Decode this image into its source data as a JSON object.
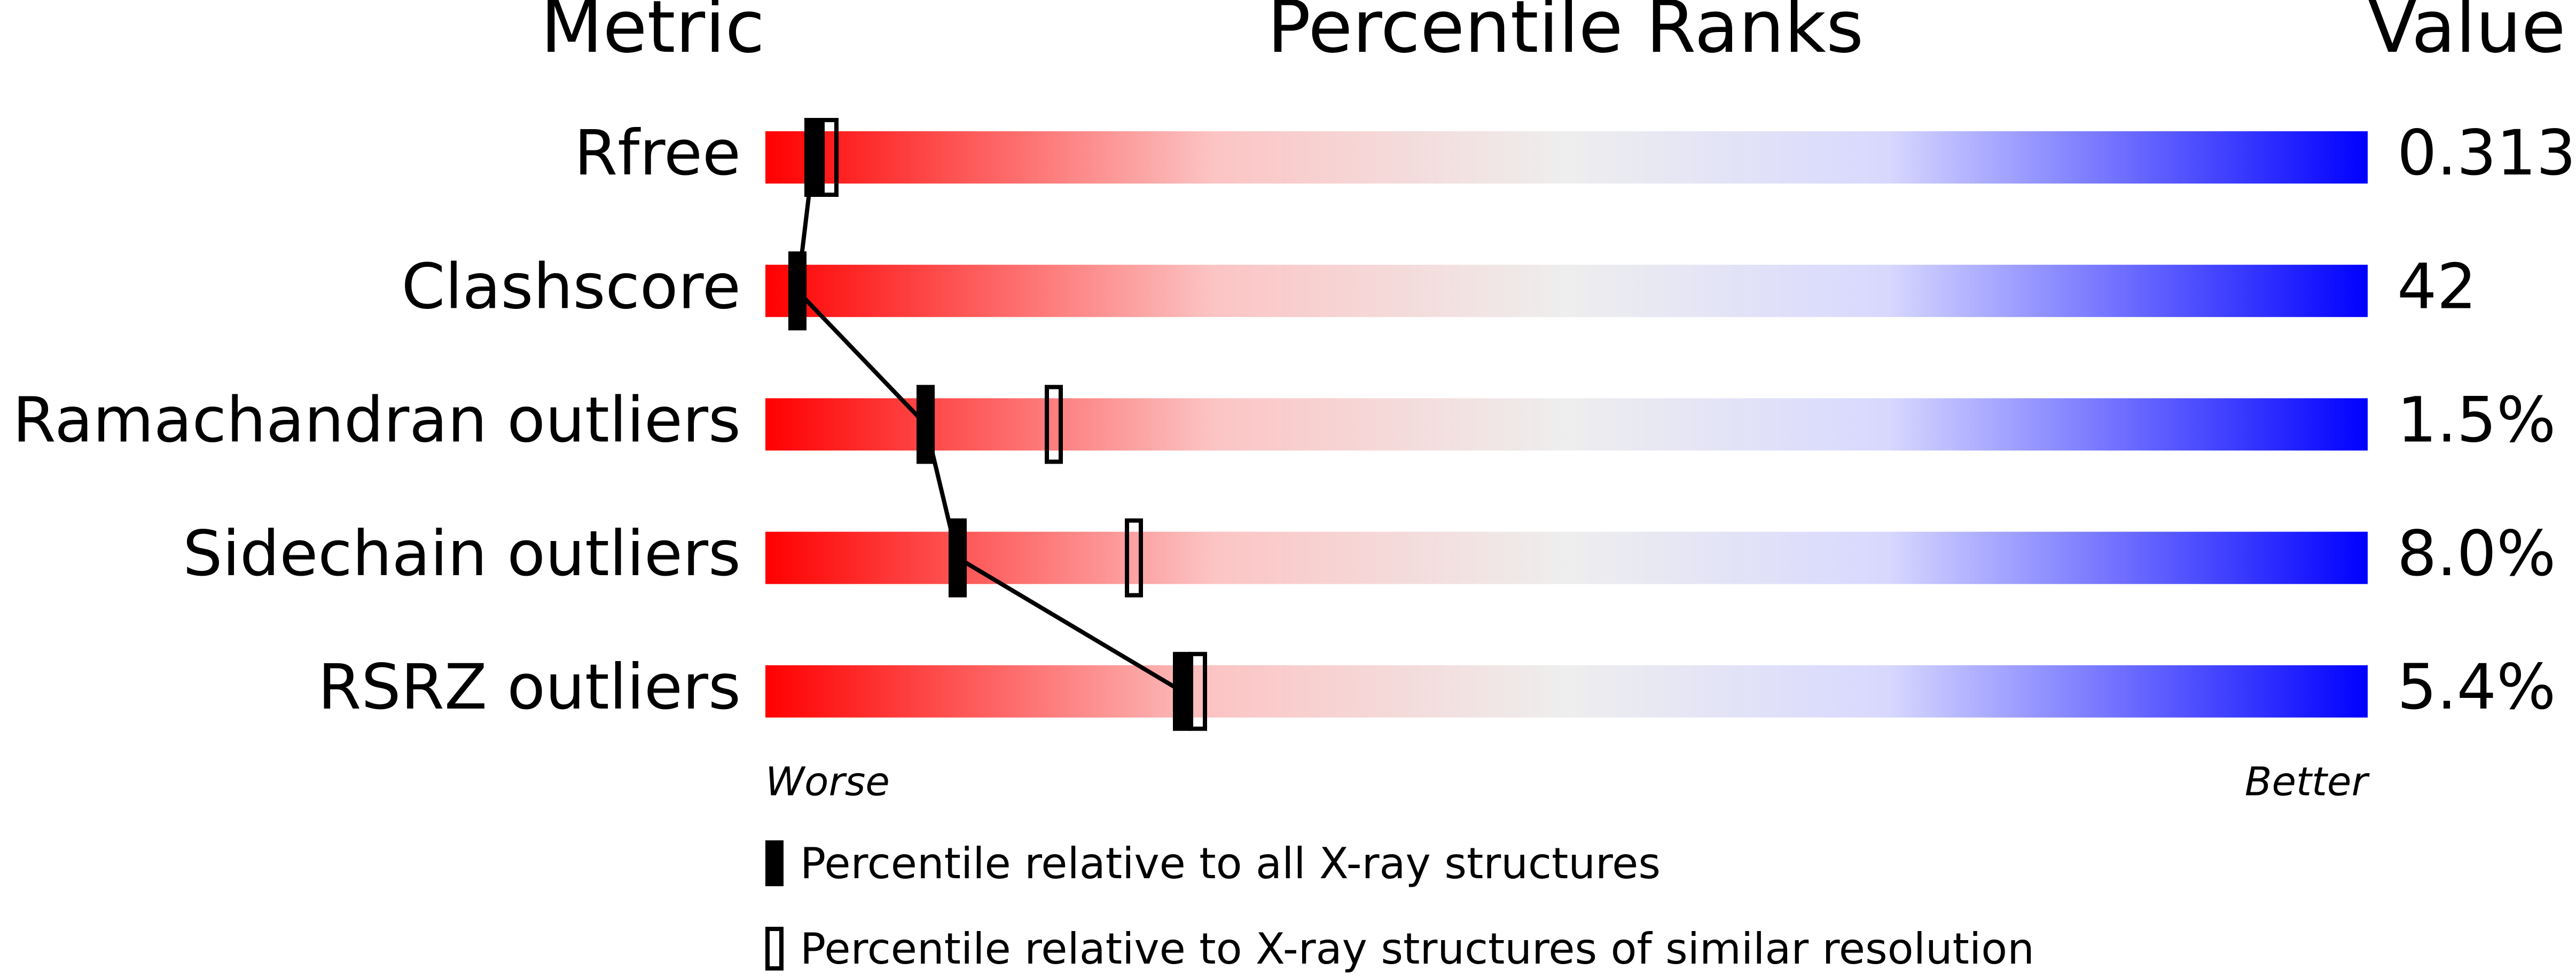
{
  "chart_data": {
    "type": "percentile",
    "headers": [
      "Metric",
      "Percentile Ranks",
      "Value"
    ],
    "categories": [
      "Rfree",
      "Clashscore",
      "Ramachandran outliers",
      "Sidechain outliers",
      "RSRZ outliers"
    ],
    "values": [
      0.313,
      42,
      1.5,
      8.0,
      5.4
    ],
    "value_labels": [
      "0.313",
      "42",
      "1.5%",
      "8.0%",
      "5.4%"
    ],
    "xlim": [
      0,
      100
    ],
    "series": [
      {
        "name": "Percentile relative to all X-ray structures",
        "color": "#000000",
        "values": [
          3,
          2,
          10,
          12,
          26
        ]
      },
      {
        "name": "Percentile relative to X-ray structures of similar resolution",
        "color": "#000000",
        "values": [
          4,
          null,
          18,
          23,
          27
        ]
      }
    ],
    "worse_label": "Worse",
    "better_label": "Better"
  }
}
